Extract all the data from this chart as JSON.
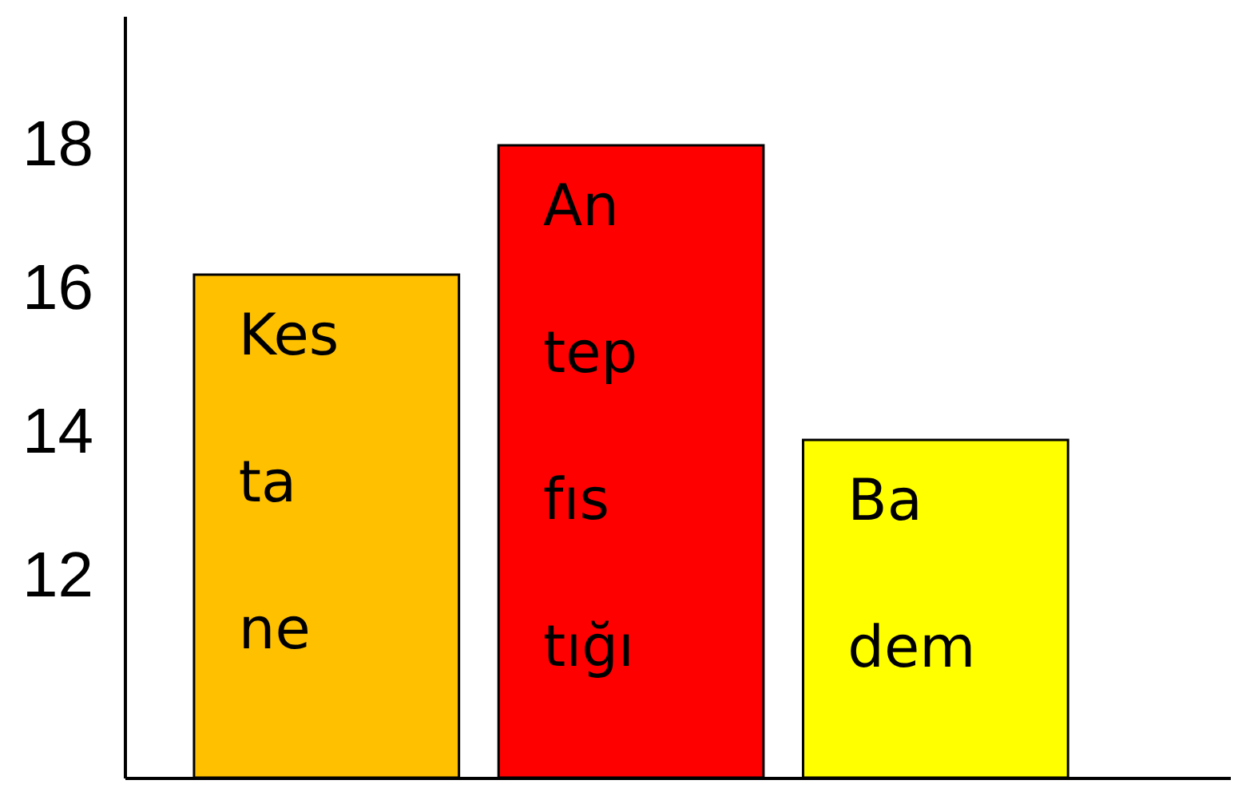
{
  "chart_data": {
    "type": "bar",
    "categories": [
      "Kes ta ne",
      "An tep fıs tığı",
      "Ba dem"
    ],
    "values": [
      16.2,
      18,
      13.9
    ],
    "colors": [
      "#ffc000",
      "#ff0000",
      "#ffff00"
    ],
    "ylim": [
      9.2,
      19.8
    ],
    "yticks": [
      12,
      14,
      16,
      18
    ],
    "grid": false,
    "tick_labels": "y"
  }
}
